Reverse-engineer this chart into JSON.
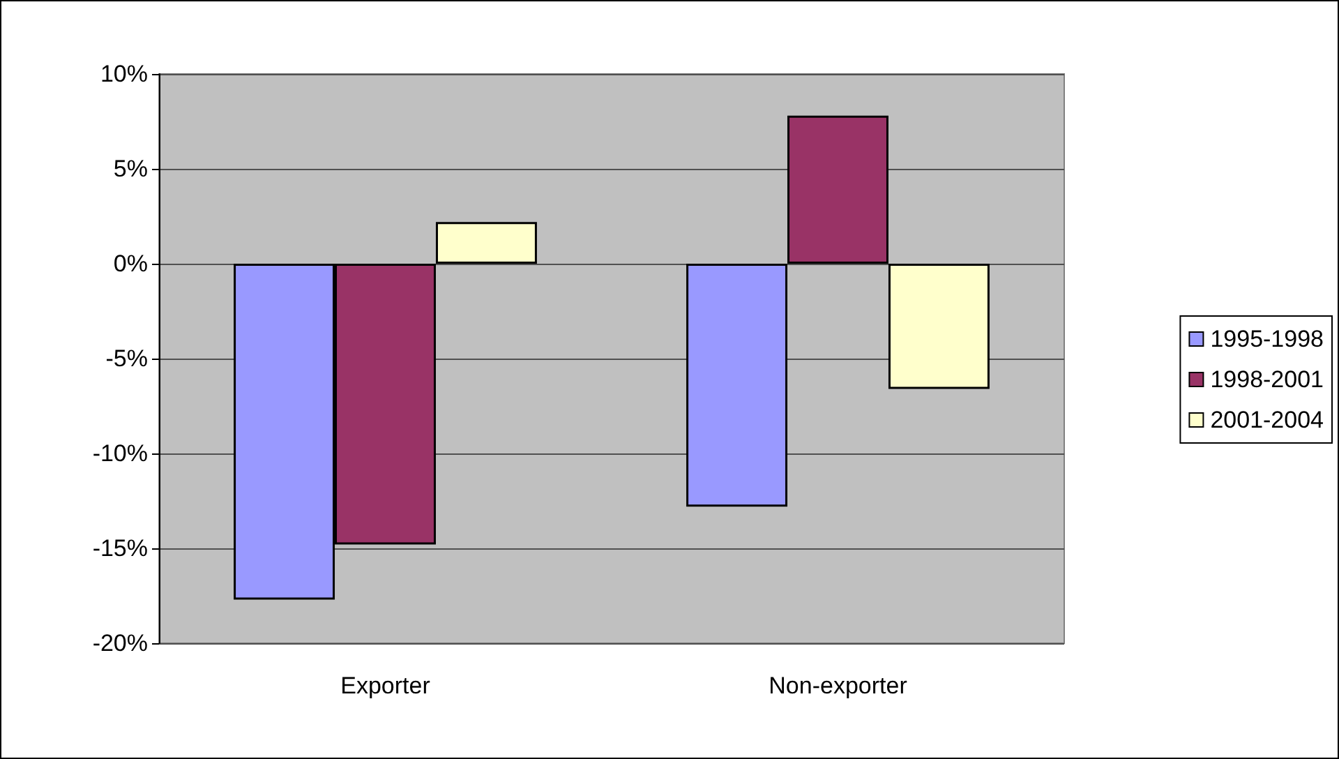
{
  "chart_data": {
    "type": "bar",
    "categories": [
      "Exporter",
      "Non-exporter"
    ],
    "series": [
      {
        "name": "1995-1998",
        "color": "#9999ff",
        "values": [
          -17.7,
          -12.8
        ]
      },
      {
        "name": "1998-2001",
        "color": "#993366",
        "values": [
          -14.8,
          7.8
        ]
      },
      {
        "name": "2001-2004",
        "color": "#ffffcc",
        "values": [
          2.2,
          -6.6
        ]
      }
    ],
    "ylim": [
      -20,
      10
    ],
    "yticks": [
      {
        "value": -20,
        "label": "-20%"
      },
      {
        "value": -15,
        "label": "-15%"
      },
      {
        "value": -10,
        "label": "-10%"
      },
      {
        "value": -5,
        "label": "-5%"
      },
      {
        "value": 0,
        "label": "0%"
      },
      {
        "value": 5,
        "label": "5%"
      },
      {
        "value": 10,
        "label": "10%"
      }
    ],
    "grid": "y",
    "legend": "right"
  }
}
